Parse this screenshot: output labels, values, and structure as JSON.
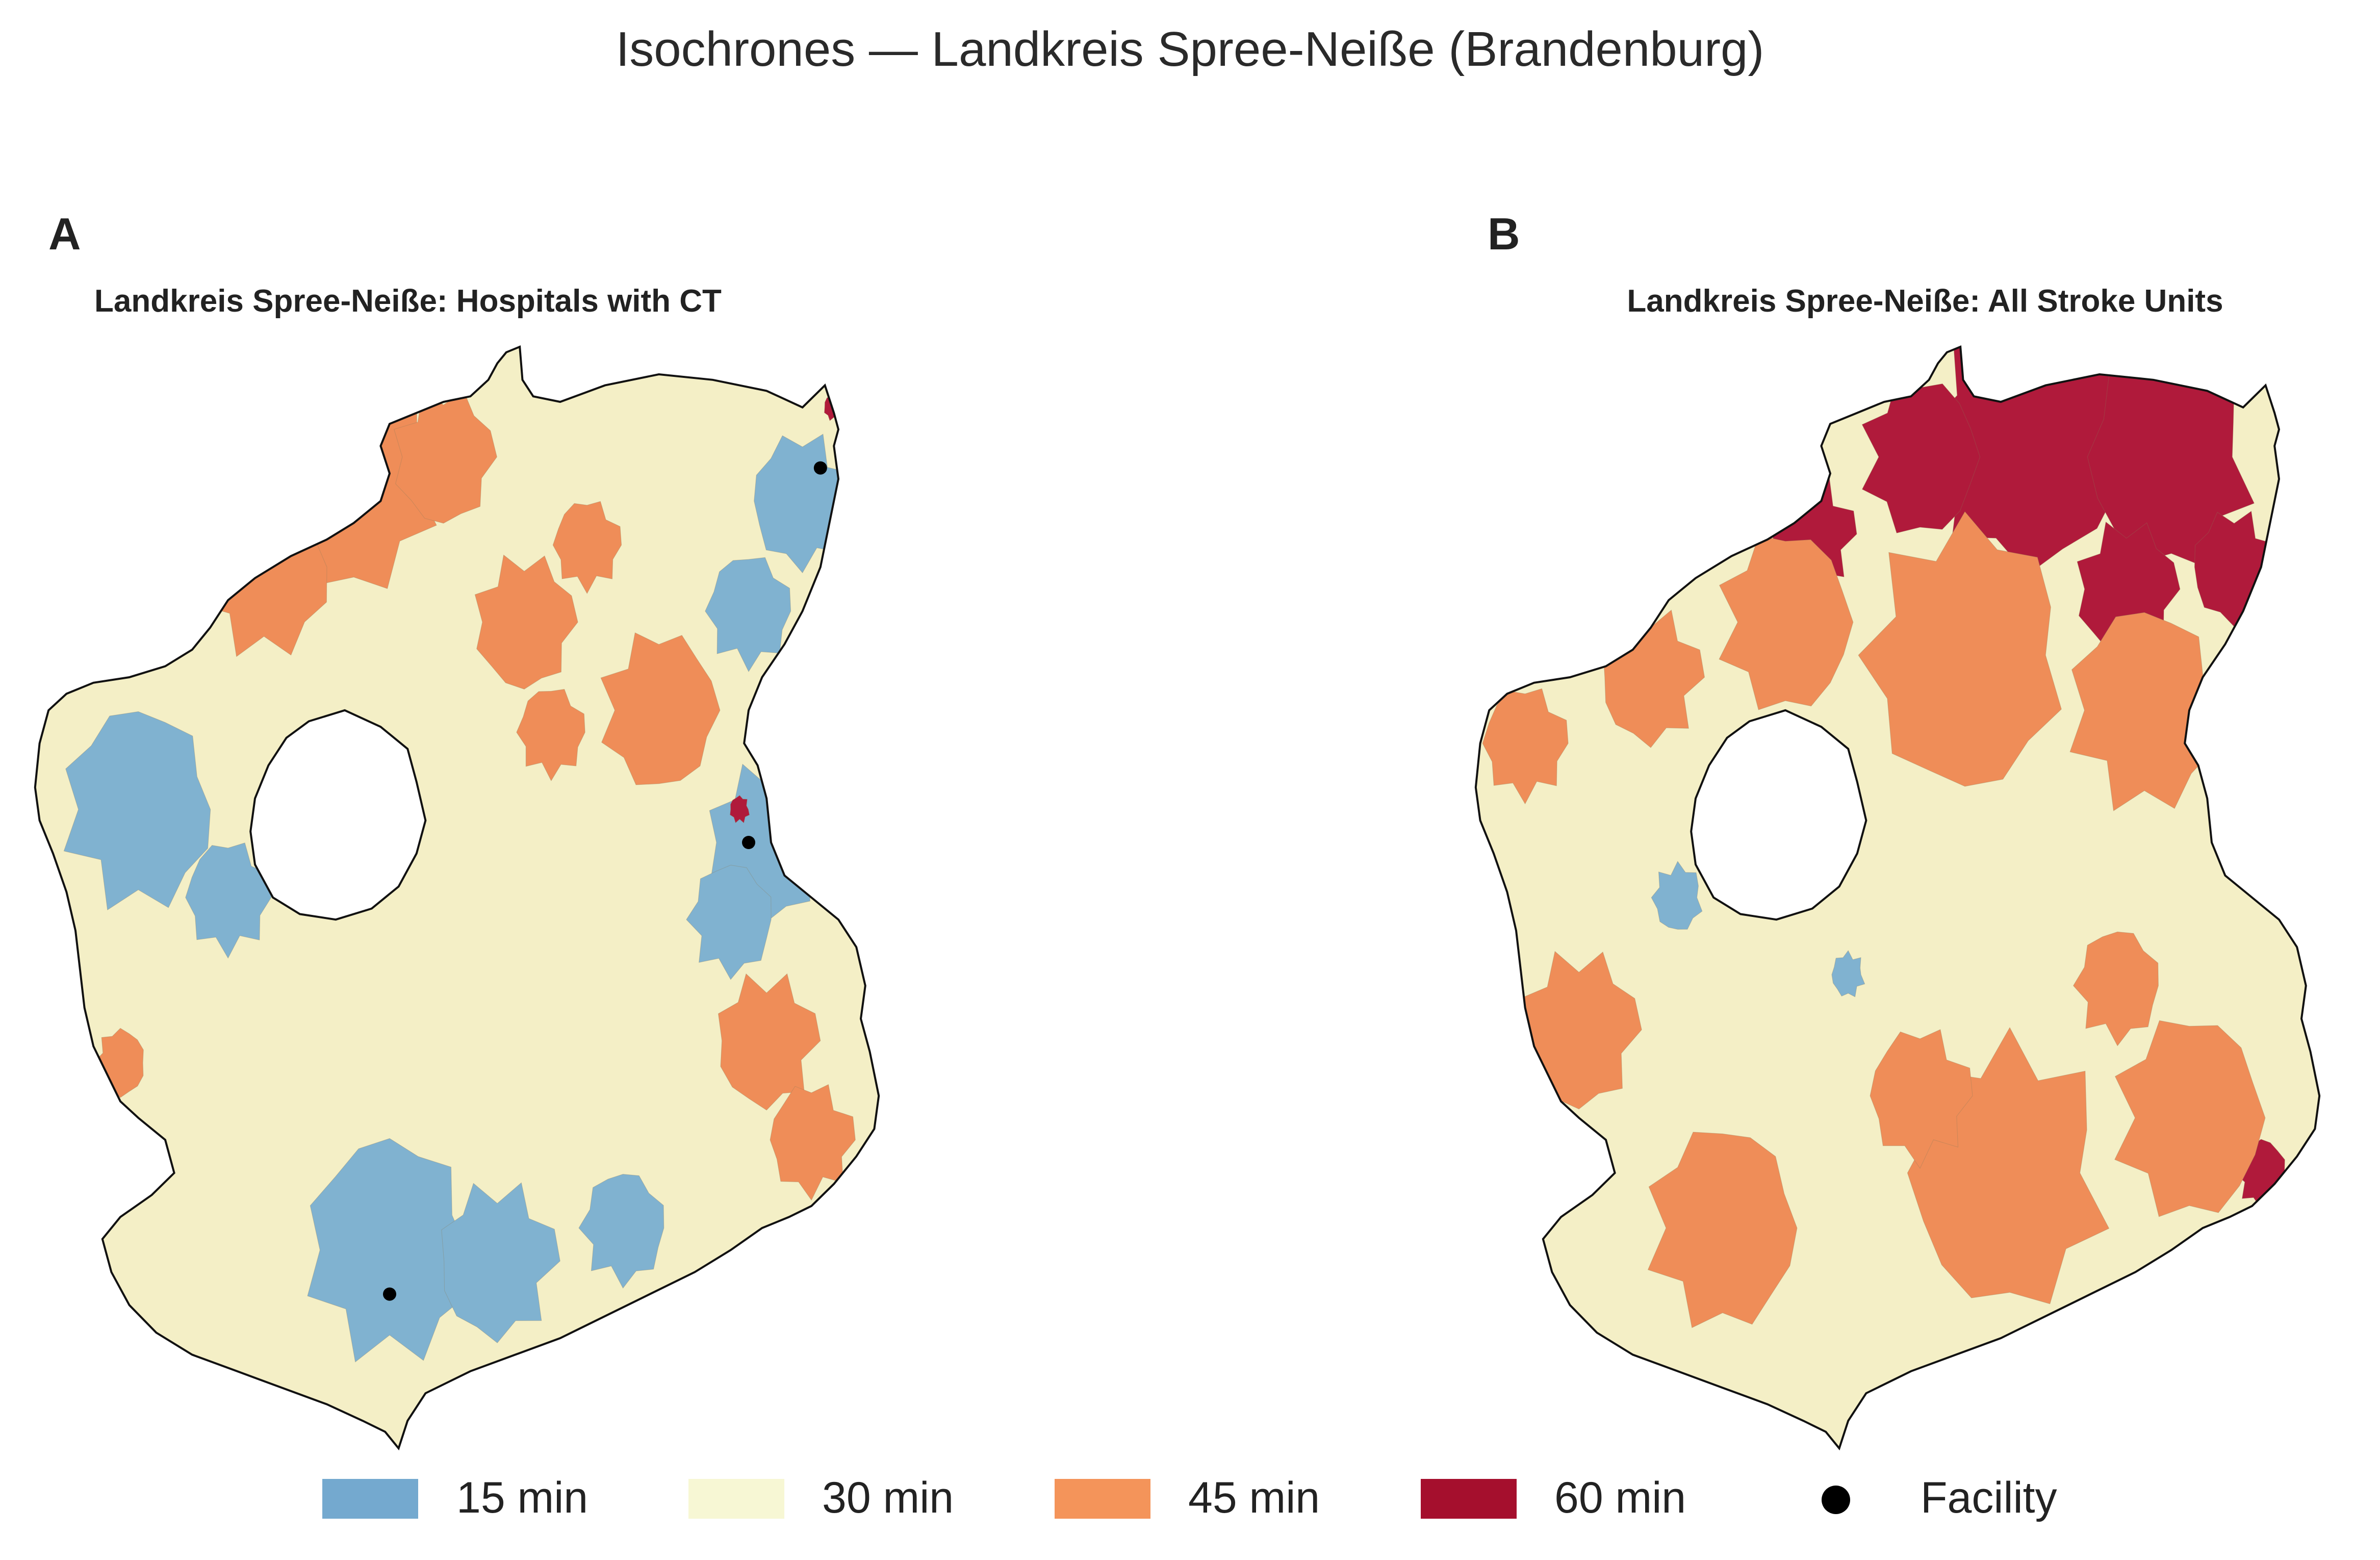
{
  "figure": {
    "suptitle": "Isochrones — Landkreis Spree-Neiße (Brandenburg)"
  },
  "panels": [
    {
      "letter": "A",
      "title": "Landkreis Spree-Neiße: Hospitals with CT",
      "facilities_shown": 3
    },
    {
      "letter": "B",
      "title": "Landkreis Spree-Neiße: All Stroke Units",
      "facilities_shown": 0
    }
  ],
  "legend": {
    "items": [
      {
        "label": "15 min",
        "color": "#74a9cf",
        "kind": "patch"
      },
      {
        "label": "30 min",
        "color": "#f7f7d4",
        "kind": "patch"
      },
      {
        "label": "45 min",
        "color": "#f4945a",
        "kind": "patch"
      },
      {
        "label": "60 min",
        "color": "#a50f2d",
        "kind": "patch"
      },
      {
        "label": "Facility",
        "color": "#000000",
        "kind": "marker"
      }
    ]
  },
  "palette": {
    "t15": "#80b2d0",
    "t30": "#f4efc6",
    "t45": "#ef8d58",
    "t60": "#b01a3b",
    "outline": "#111111"
  }
}
